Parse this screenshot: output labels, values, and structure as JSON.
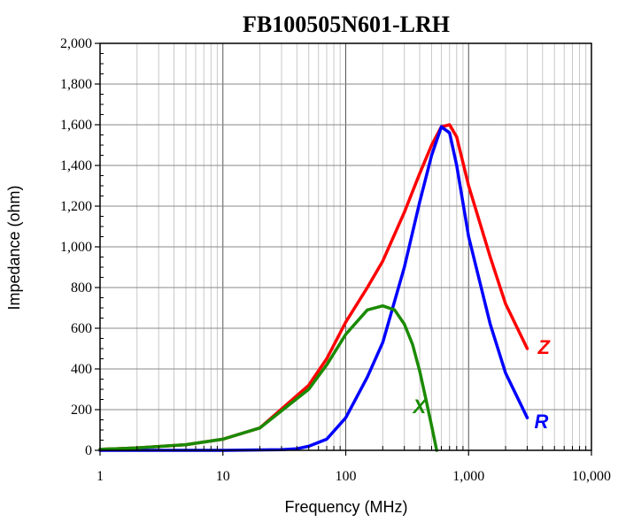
{
  "chart_data": {
    "type": "line",
    "title": "FB100505N601-LRH",
    "xlabel": "Frequency (MHz)",
    "ylabel": "Impedance (ohm)",
    "xscale": "log",
    "xlim": [
      1,
      10000
    ],
    "ylim": [
      0,
      2000
    ],
    "grid": true,
    "x_ticks": [
      1,
      10,
      100,
      1000,
      10000
    ],
    "x_tick_labels": [
      "1",
      "10",
      "100",
      "1,000",
      "10,000"
    ],
    "y_ticks": [
      0,
      200,
      400,
      600,
      800,
      1000,
      1200,
      1400,
      1600,
      1800,
      2000
    ],
    "y_tick_labels": [
      "0",
      "200",
      "400",
      "600",
      "800",
      "1,000",
      "1,200",
      "1,400",
      "1,600",
      "1,800",
      "2,000"
    ],
    "series": [
      {
        "name": "Z",
        "color": "#ff0000",
        "x": [
          1,
          2,
          5,
          10,
          20,
          50,
          70,
          100,
          150,
          200,
          300,
          400,
          500,
          600,
          700,
          800,
          1000,
          1500,
          2000,
          3000
        ],
        "values": [
          5,
          12,
          28,
          55,
          110,
          320,
          450,
          630,
          800,
          930,
          1170,
          1360,
          1500,
          1590,
          1600,
          1540,
          1300,
          950,
          720,
          500
        ]
      },
      {
        "name": "R",
        "color": "#0000ff",
        "x": [
          1,
          10,
          30,
          40,
          50,
          70,
          100,
          150,
          200,
          300,
          400,
          500,
          600,
          700,
          800,
          1000,
          1500,
          2000,
          3000
        ],
        "values": [
          0,
          0,
          3,
          8,
          20,
          55,
          160,
          360,
          530,
          900,
          1220,
          1450,
          1590,
          1560,
          1400,
          1050,
          620,
          380,
          160
        ]
      },
      {
        "name": "X",
        "color": "#1a8a00",
        "x": [
          1,
          2,
          5,
          10,
          20,
          50,
          70,
          100,
          150,
          200,
          250,
          300,
          350,
          400,
          450,
          500,
          550
        ],
        "values": [
          5,
          12,
          28,
          55,
          110,
          300,
          420,
          570,
          690,
          710,
          690,
          620,
          520,
          390,
          250,
          120,
          0
        ]
      }
    ]
  }
}
